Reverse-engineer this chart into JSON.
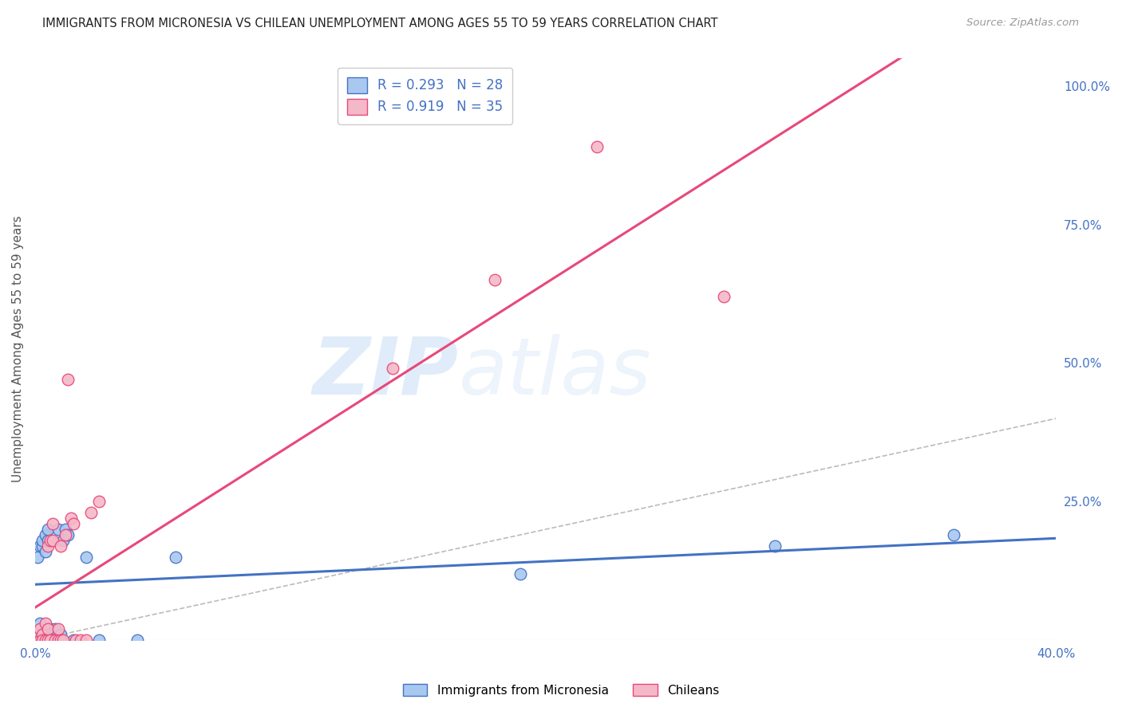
{
  "title": "IMMIGRANTS FROM MICRONESIA VS CHILEAN UNEMPLOYMENT AMONG AGES 55 TO 59 YEARS CORRELATION CHART",
  "source": "Source: ZipAtlas.com",
  "ylabel": "Unemployment Among Ages 55 to 59 years",
  "xlim": [
    0.0,
    0.4
  ],
  "ylim": [
    0.0,
    1.05
  ],
  "xticks": [
    0.0,
    0.05,
    0.1,
    0.15,
    0.2,
    0.25,
    0.3,
    0.35,
    0.4
  ],
  "yticks_right": [
    0.0,
    0.25,
    0.5,
    0.75,
    1.0
  ],
  "ytick_labels_right": [
    "",
    "25.0%",
    "50.0%",
    "75.0%",
    "100.0%"
  ],
  "legend_r1": "R = 0.293",
  "legend_n1": "N = 28",
  "legend_r2": "R = 0.919",
  "legend_n2": "N = 35",
  "color_micronesia": "#a8c8f0",
  "color_chileans": "#f5b8c8",
  "line_color_micronesia": "#4472c4",
  "line_color_chileans": "#e8487a",
  "ref_line_color": "#bbbbbb",
  "grid_color": "#d8d8d8",
  "title_color": "#222222",
  "watermark_zip": "ZIP",
  "watermark_atlas": "atlas",
  "micronesia_x": [
    0.001,
    0.001,
    0.002,
    0.002,
    0.003,
    0.003,
    0.004,
    0.004,
    0.005,
    0.005,
    0.006,
    0.006,
    0.007,
    0.008,
    0.009,
    0.009,
    0.01,
    0.011,
    0.012,
    0.013,
    0.015,
    0.02,
    0.025,
    0.04,
    0.055,
    0.19,
    0.29,
    0.36
  ],
  "micronesia_y": [
    0.01,
    0.15,
    0.03,
    0.17,
    0.17,
    0.18,
    0.16,
    0.19,
    0.18,
    0.2,
    0.01,
    0.02,
    0.0,
    0.02,
    0.2,
    0.0,
    0.01,
    0.18,
    0.2,
    0.19,
    0.0,
    0.15,
    0.0,
    0.0,
    0.15,
    0.12,
    0.17,
    0.19
  ],
  "chileans_x": [
    0.001,
    0.001,
    0.002,
    0.002,
    0.003,
    0.003,
    0.003,
    0.004,
    0.004,
    0.005,
    0.005,
    0.005,
    0.006,
    0.006,
    0.007,
    0.007,
    0.008,
    0.009,
    0.009,
    0.01,
    0.01,
    0.011,
    0.012,
    0.013,
    0.014,
    0.015,
    0.016,
    0.018,
    0.02,
    0.022,
    0.025,
    0.14,
    0.18,
    0.22,
    0.27
  ],
  "chileans_y": [
    0.0,
    0.01,
    0.0,
    0.02,
    0.0,
    0.01,
    0.0,
    0.03,
    0.0,
    0.0,
    0.02,
    0.17,
    0.0,
    0.18,
    0.18,
    0.21,
    0.0,
    0.0,
    0.02,
    0.0,
    0.17,
    0.0,
    0.19,
    0.47,
    0.22,
    0.21,
    0.0,
    0.0,
    0.0,
    0.23,
    0.25,
    0.49,
    0.65,
    0.89,
    0.62
  ]
}
